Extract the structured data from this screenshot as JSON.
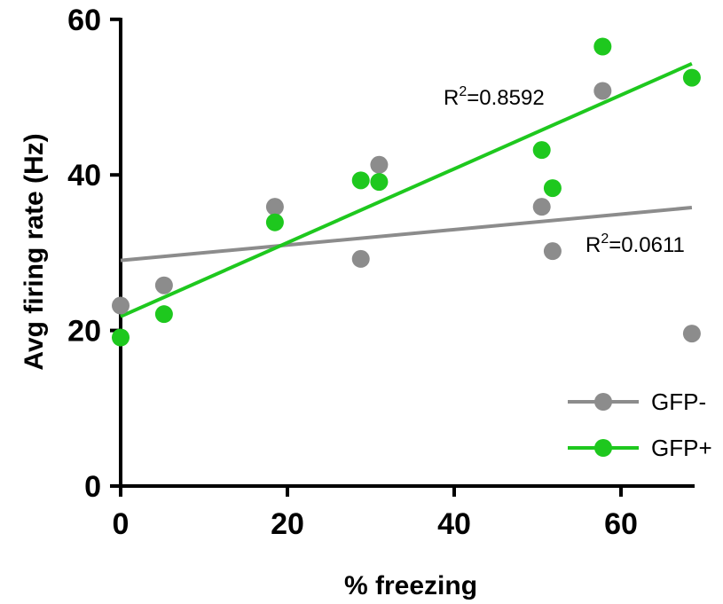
{
  "chart_data": {
    "type": "scatter",
    "xlabel": "% freezing",
    "ylabel": "Avg firing rate (Hz)",
    "xlim": [
      0,
      70
    ],
    "ylim": [
      0,
      60
    ],
    "xticks": [
      0,
      20,
      40,
      60
    ],
    "yticks": [
      0,
      20,
      40,
      60
    ],
    "grid": false,
    "legend_position": "bottom-right",
    "series": [
      {
        "name": "GFP-",
        "color": "#8c8c8c",
        "points": [
          {
            "x": 0,
            "y": 23.2
          },
          {
            "x": 5.2,
            "y": 25.8
          },
          {
            "x": 18.5,
            "y": 35.9
          },
          {
            "x": 28.8,
            "y": 29.2
          },
          {
            "x": 31.0,
            "y": 41.3
          },
          {
            "x": 50.5,
            "y": 35.9
          },
          {
            "x": 51.8,
            "y": 30.2
          },
          {
            "x": 57.8,
            "y": 50.8
          },
          {
            "x": 68.5,
            "y": 19.6
          }
        ],
        "fit": {
          "x": [
            0,
            68.5
          ],
          "y": [
            29.0,
            35.8
          ]
        },
        "r2_label": "0.0611"
      },
      {
        "name": "GFP+",
        "color": "#1ec81e",
        "points": [
          {
            "x": 0,
            "y": 19.1
          },
          {
            "x": 5.2,
            "y": 22.1
          },
          {
            "x": 18.5,
            "y": 33.9
          },
          {
            "x": 28.8,
            "y": 39.3
          },
          {
            "x": 31.0,
            "y": 39.1
          },
          {
            "x": 50.5,
            "y": 43.2
          },
          {
            "x": 51.8,
            "y": 38.3
          },
          {
            "x": 57.8,
            "y": 56.5
          },
          {
            "x": 68.5,
            "y": 52.5
          }
        ],
        "fit": {
          "x": [
            0,
            68.5
          ],
          "y": [
            21.8,
            54.3
          ]
        },
        "r2_label": "0.8592"
      }
    ],
    "annotations": {
      "r2_prefix": "R",
      "r2_superscript": "2",
      "r2_equals": "="
    }
  }
}
